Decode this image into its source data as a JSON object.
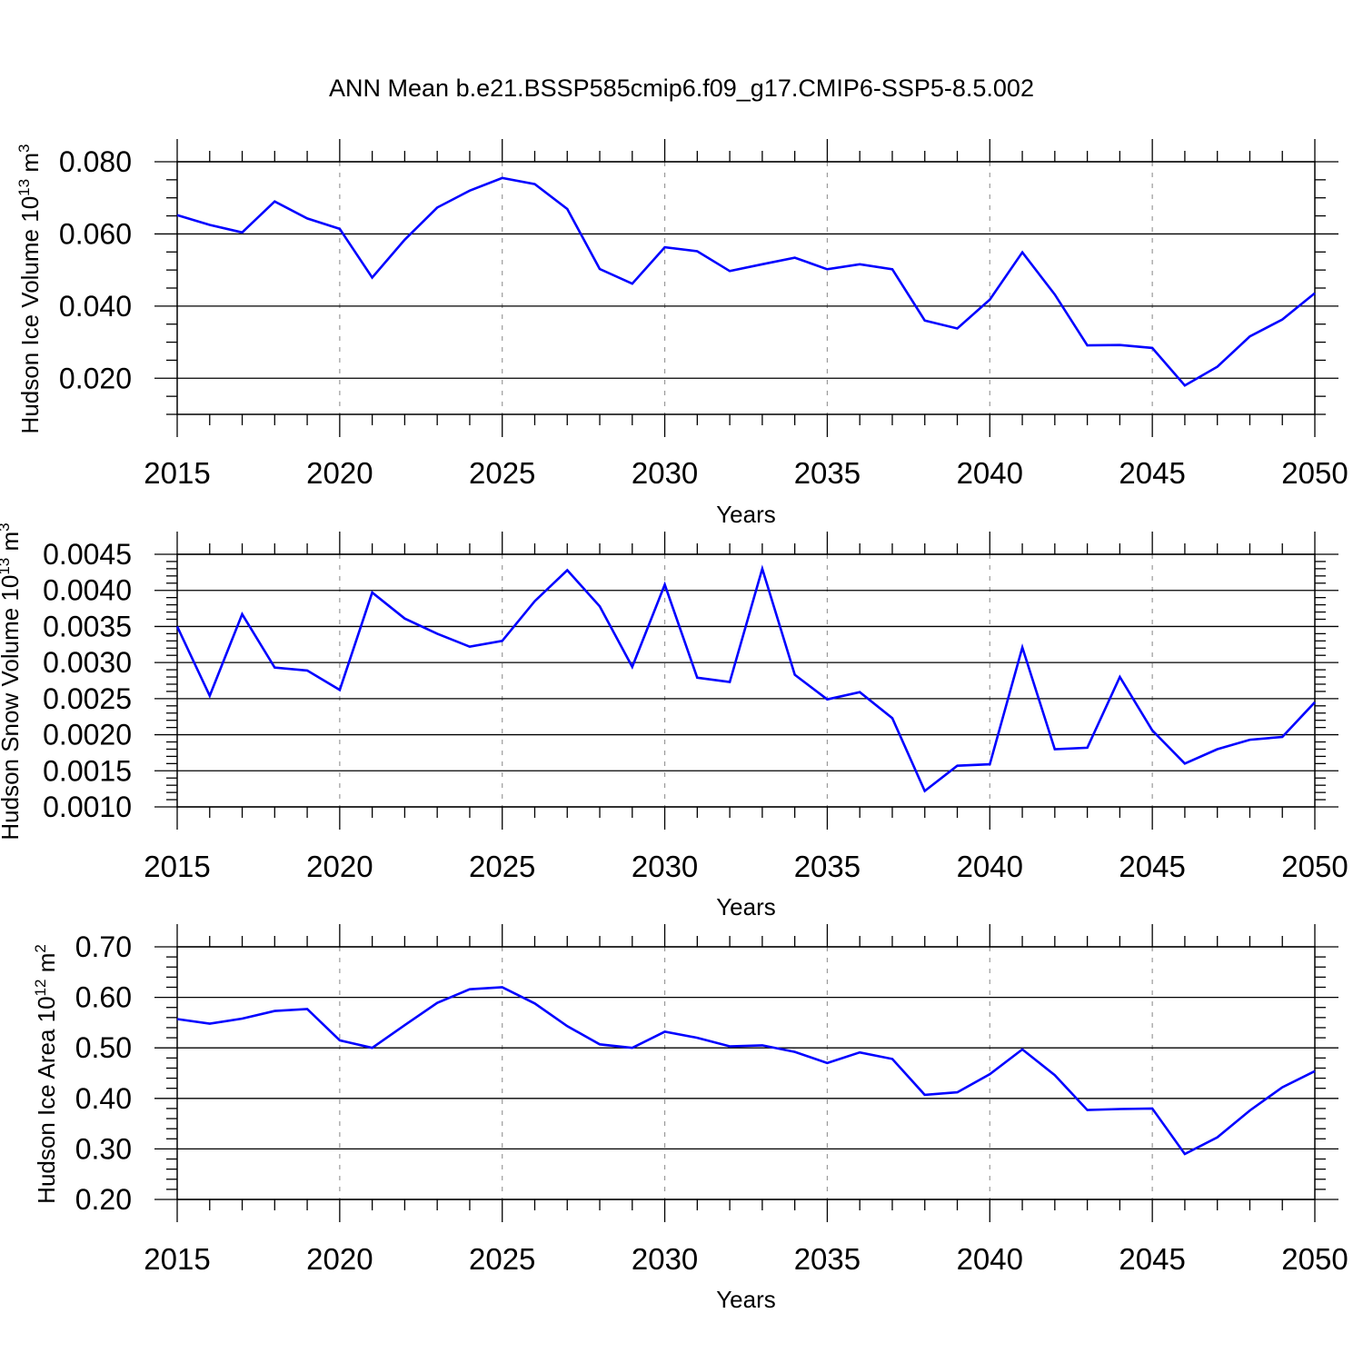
{
  "title": "ANN Mean b.e21.BSSP585cmip6.f09_g17.CMIP6-SSP5-8.5.002",
  "chart_data": [
    {
      "type": "line",
      "xlabel": "Years",
      "ylabel": {
        "text": "Hudson Ice Volume 10",
        "sup": "13",
        "unit": " m",
        "unit_sup": "3"
      },
      "xlim": [
        2015,
        2050
      ],
      "ylim": [
        0.01,
        0.08
      ],
      "x_ticks": [
        2015,
        2020,
        2025,
        2030,
        2035,
        2040,
        2045,
        2050
      ],
      "x_tick_labels": [
        "2015",
        "2020",
        "2025",
        "2030",
        "2035",
        "2040",
        "2045",
        "2050"
      ],
      "y_ticks": [
        0.02,
        0.04,
        0.06,
        0.08
      ],
      "y_tick_labels": [
        "0.020",
        "0.040",
        "0.060",
        "0.080"
      ],
      "y_minor_step": 0.005,
      "grid": "x-dashed",
      "color": "#0000ff",
      "x": [
        2015,
        2016,
        2017,
        2018,
        2019,
        2020,
        2021,
        2022,
        2023,
        2024,
        2025,
        2026,
        2027,
        2028,
        2029,
        2030,
        2031,
        2032,
        2033,
        2034,
        2035,
        2036,
        2037,
        2038,
        2039,
        2040,
        2041,
        2042,
        2043,
        2044,
        2045,
        2046,
        2047,
        2048,
        2049,
        2050
      ],
      "y": [
        0.0652,
        0.0625,
        0.0604,
        0.069,
        0.0643,
        0.0614,
        0.0479,
        0.0584,
        0.0673,
        0.072,
        0.0755,
        0.0738,
        0.0669,
        0.0503,
        0.0462,
        0.0563,
        0.0552,
        0.0497,
        0.0516,
        0.0534,
        0.0502,
        0.0516,
        0.0502,
        0.036,
        0.0338,
        0.0418,
        0.0549,
        0.0432,
        0.0291,
        0.0292,
        0.0284,
        0.018,
        0.0232,
        0.0316,
        0.0363,
        0.0436
      ]
    },
    {
      "type": "line",
      "xlabel": "Years",
      "ylabel": {
        "text": "Hudson Snow Volume 10",
        "sup": "13",
        "unit": " m",
        "unit_sup": "3"
      },
      "xlim": [
        2015,
        2050
      ],
      "ylim": [
        0.001,
        0.0045
      ],
      "x_ticks": [
        2015,
        2020,
        2025,
        2030,
        2035,
        2040,
        2045,
        2050
      ],
      "x_tick_labels": [
        "2015",
        "2020",
        "2025",
        "2030",
        "2035",
        "2040",
        "2045",
        "2050"
      ],
      "y_ticks": [
        0.001,
        0.0015,
        0.002,
        0.0025,
        0.003,
        0.0035,
        0.004,
        0.0045
      ],
      "y_tick_labels": [
        "0.0010",
        "0.0015",
        "0.0020",
        "0.0025",
        "0.0030",
        "0.0035",
        "0.0040",
        "0.0045"
      ],
      "y_minor_step": 0.0001,
      "grid": "x-dashed",
      "color": "#0000ff",
      "x": [
        2015,
        2016,
        2017,
        2018,
        2019,
        2020,
        2021,
        2022,
        2023,
        2024,
        2025,
        2026,
        2027,
        2028,
        2029,
        2030,
        2031,
        2032,
        2033,
        2034,
        2035,
        2036,
        2037,
        2038,
        2039,
        2040,
        2041,
        2042,
        2043,
        2044,
        2045,
        2046,
        2047,
        2048,
        2049,
        2050
      ],
      "y": [
        0.0035,
        0.00254,
        0.00367,
        0.00293,
        0.00289,
        0.00262,
        0.00397,
        0.00361,
        0.0034,
        0.00322,
        0.0033,
        0.00385,
        0.00428,
        0.00378,
        0.00294,
        0.00408,
        0.00279,
        0.00273,
        0.0043,
        0.00283,
        0.00249,
        0.00259,
        0.00223,
        0.00122,
        0.00157,
        0.00159,
        0.00321,
        0.0018,
        0.00182,
        0.0028,
        0.00206,
        0.0016,
        0.0018,
        0.00193,
        0.00197,
        0.00245
      ]
    },
    {
      "type": "line",
      "xlabel": "Years",
      "ylabel": {
        "text": "Hudson Ice Area 10",
        "sup": "12",
        "unit": " m",
        "unit_sup": "2"
      },
      "xlim": [
        2015,
        2050
      ],
      "ylim": [
        0.2,
        0.7
      ],
      "x_ticks": [
        2015,
        2020,
        2025,
        2030,
        2035,
        2040,
        2045,
        2050
      ],
      "x_tick_labels": [
        "2015",
        "2020",
        "2025",
        "2030",
        "2035",
        "2040",
        "2045",
        "2050"
      ],
      "y_ticks": [
        0.2,
        0.3,
        0.4,
        0.5,
        0.6,
        0.7
      ],
      "y_tick_labels": [
        "0.20",
        "0.30",
        "0.40",
        "0.50",
        "0.60",
        "0.70"
      ],
      "y_minor_step": 0.02,
      "grid": "x-dashed",
      "color": "#0000ff",
      "x": [
        2015,
        2016,
        2017,
        2018,
        2019,
        2020,
        2021,
        2022,
        2023,
        2024,
        2025,
        2026,
        2027,
        2028,
        2029,
        2030,
        2031,
        2032,
        2033,
        2034,
        2035,
        2036,
        2037,
        2038,
        2039,
        2040,
        2041,
        2042,
        2043,
        2044,
        2045,
        2046,
        2047,
        2048,
        2049,
        2050
      ],
      "y": [
        0.557,
        0.548,
        0.558,
        0.573,
        0.577,
        0.515,
        0.5,
        0.545,
        0.589,
        0.616,
        0.62,
        0.588,
        0.543,
        0.507,
        0.5,
        0.532,
        0.52,
        0.503,
        0.505,
        0.492,
        0.47,
        0.491,
        0.478,
        0.407,
        0.412,
        0.448,
        0.497,
        0.446,
        0.377,
        0.379,
        0.38,
        0.29,
        0.323,
        0.376,
        0.422,
        0.454
      ]
    }
  ]
}
